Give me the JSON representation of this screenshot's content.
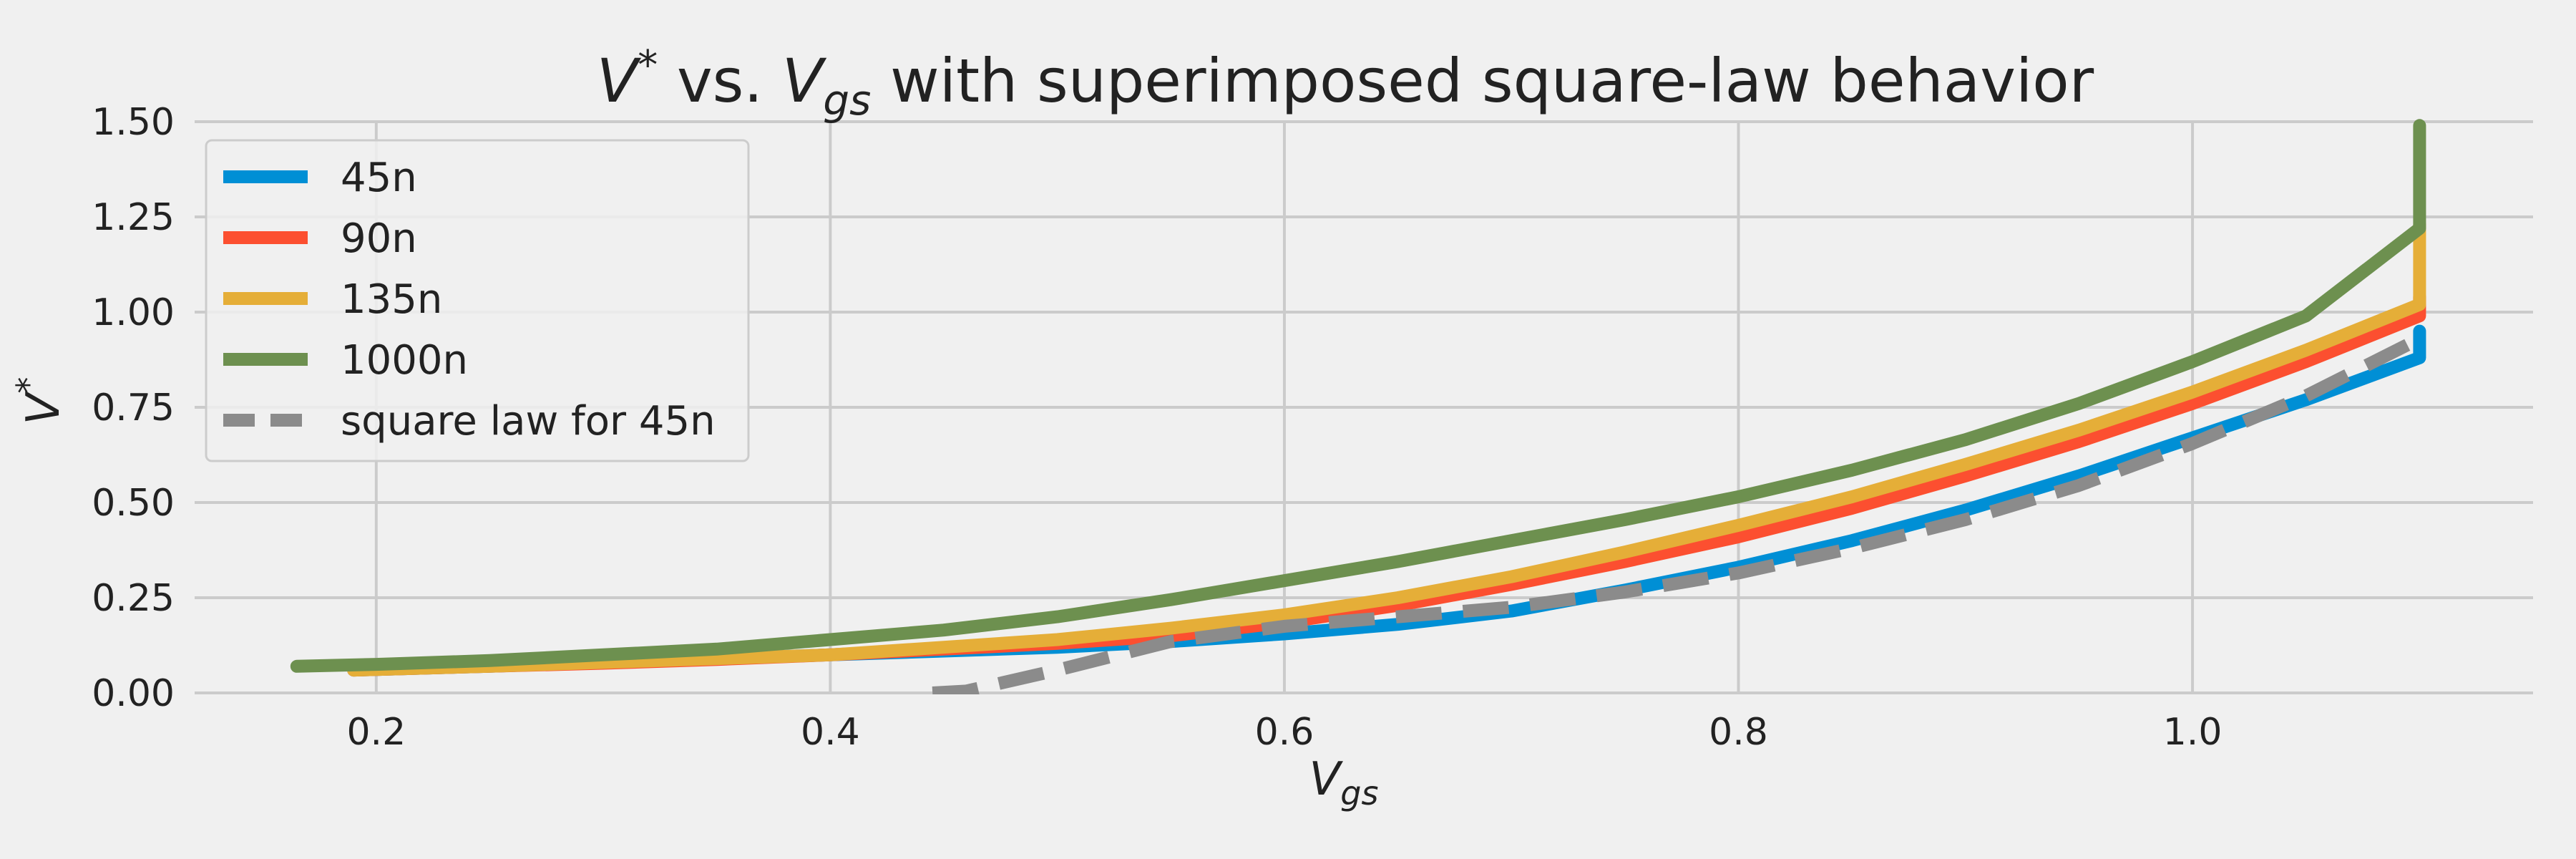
{
  "chart_data": {
    "type": "line",
    "title_parts": {
      "v": "V",
      "star": "*",
      "vs": " vs. ",
      "vg": "V",
      "gs_sub": "gs",
      "rest": " with superimposed square-law behavior"
    },
    "xlabel_parts": {
      "v": "V",
      "sub": "gs"
    },
    "ylabel_parts": {
      "v": "V",
      "sup": "*"
    },
    "xlim": [
      0.12,
      1.15
    ],
    "ylim": [
      0.0,
      1.5
    ],
    "xticks": [
      0.2,
      0.4,
      0.6,
      0.8,
      1.0
    ],
    "xtick_labels": [
      "0.2",
      "0.4",
      "0.6",
      "0.8",
      "1.0"
    ],
    "yticks": [
      0.0,
      0.25,
      0.5,
      0.75,
      1.0,
      1.25,
      1.5
    ],
    "ytick_labels": [
      "0.00",
      "0.25",
      "0.50",
      "0.75",
      "1.00",
      "1.25",
      "1.50"
    ],
    "grid": true,
    "legend_position": "upper-left",
    "series": [
      {
        "name": "45n",
        "color": "#008fd5",
        "dash": false,
        "x": [
          0.19,
          0.25,
          0.3,
          0.35,
          0.4,
          0.45,
          0.5,
          0.55,
          0.6,
          0.65,
          0.7,
          0.75,
          0.8,
          0.85,
          0.9,
          0.95,
          1.0,
          1.05,
          1.1,
          1.1
        ],
        "y": [
          0.06,
          0.07,
          0.08,
          0.09,
          0.1,
          0.11,
          0.12,
          0.135,
          0.155,
          0.18,
          0.215,
          0.27,
          0.33,
          0.4,
          0.48,
          0.57,
          0.67,
          0.77,
          0.88,
          0.95
        ]
      },
      {
        "name": "90n",
        "color": "#fc4f30",
        "dash": false,
        "x": [
          0.19,
          0.25,
          0.3,
          0.35,
          0.4,
          0.45,
          0.5,
          0.55,
          0.6,
          0.65,
          0.7,
          0.75,
          0.8,
          0.85,
          0.9,
          0.95,
          1.0,
          1.05,
          1.1,
          1.1
        ],
        "y": [
          0.06,
          0.07,
          0.078,
          0.088,
          0.1,
          0.115,
          0.13,
          0.15,
          0.185,
          0.23,
          0.285,
          0.345,
          0.41,
          0.485,
          0.57,
          0.66,
          0.76,
          0.87,
          0.99,
          1.04
        ]
      },
      {
        "name": "135n",
        "color": "#e5ae38",
        "dash": false,
        "x": [
          0.19,
          0.25,
          0.3,
          0.35,
          0.4,
          0.45,
          0.5,
          0.55,
          0.6,
          0.65,
          0.7,
          0.75,
          0.8,
          0.85,
          0.9,
          0.95,
          1.0,
          1.05,
          1.1,
          1.1
        ],
        "y": [
          0.06,
          0.07,
          0.08,
          0.09,
          0.1,
          0.12,
          0.14,
          0.17,
          0.205,
          0.25,
          0.305,
          0.37,
          0.44,
          0.515,
          0.6,
          0.69,
          0.79,
          0.9,
          1.02,
          1.23
        ]
      },
      {
        "name": "1000n",
        "color": "#6d904f",
        "dash": false,
        "x": [
          0.165,
          0.2,
          0.25,
          0.3,
          0.35,
          0.4,
          0.45,
          0.5,
          0.55,
          0.6,
          0.65,
          0.7,
          0.75,
          0.8,
          0.85,
          0.9,
          0.95,
          1.0,
          1.05,
          1.1,
          1.1
        ],
        "y": [
          0.07,
          0.075,
          0.085,
          0.1,
          0.115,
          0.14,
          0.165,
          0.2,
          0.245,
          0.295,
          0.345,
          0.4,
          0.455,
          0.515,
          0.585,
          0.665,
          0.76,
          0.87,
          0.99,
          1.22,
          1.49
        ]
      },
      {
        "name": "square law for 45n",
        "color": "#8b8b8b",
        "dash": true,
        "x": [
          0.445,
          0.46,
          0.5,
          0.55,
          0.6,
          0.65,
          0.7,
          0.75,
          0.8,
          0.85,
          0.9,
          0.95,
          1.0,
          1.05,
          1.1
        ],
        "y": [
          0.0,
          0.005,
          0.06,
          0.135,
          0.175,
          0.2,
          0.225,
          0.265,
          0.315,
          0.38,
          0.455,
          0.545,
          0.655,
          0.78,
          0.93
        ]
      }
    ]
  },
  "colors": {
    "background": "#f0f0f0",
    "grid": "#cbcbcb",
    "text": "#222222"
  }
}
